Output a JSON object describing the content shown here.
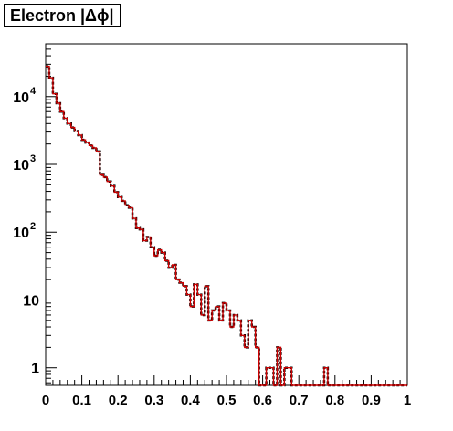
{
  "chart_data": {
    "type": "histogram",
    "title": "Electron |Δϕ|",
    "xlabel": "",
    "ylabel": "",
    "xlim": [
      0,
      1
    ],
    "ylim": [
      0.55,
      60000
    ],
    "yscale": "log",
    "bin_width": 0.01,
    "x_ticks": [
      "0",
      "0.1",
      "0.2",
      "0.3",
      "0.4",
      "0.5",
      "0.6",
      "0.7",
      "0.8",
      "0.9",
      "1"
    ],
    "x_tick_values": [
      0,
      0.1,
      0.2,
      0.3,
      0.4,
      0.5,
      0.6,
      0.7,
      0.8,
      0.9,
      1.0
    ],
    "y_ticks": [
      {
        "value": 1,
        "base": "1",
        "exp": ""
      },
      {
        "value": 10,
        "base": "10",
        "exp": ""
      },
      {
        "value": 100,
        "base": "10",
        "exp": "2"
      },
      {
        "value": 1000,
        "base": "10",
        "exp": "3"
      },
      {
        "value": 10000,
        "base": "10",
        "exp": "4"
      }
    ],
    "grid": false,
    "legend": "none",
    "series": [
      {
        "style": "dashed",
        "color": "#000000",
        "values": [
          28000,
          19000,
          11000,
          8000,
          6000,
          4800,
          4000,
          3500,
          3100,
          2700,
          2300,
          2100,
          1900,
          1750,
          1550,
          700,
          650,
          560,
          480,
          390,
          330,
          290,
          250,
          230,
          160,
          115,
          110,
          75,
          85,
          60,
          45,
          55,
          50,
          38,
          30,
          33,
          20,
          18,
          16,
          12,
          8,
          17,
          12,
          6,
          16,
          5,
          7,
          8,
          5,
          9,
          7,
          4,
          6,
          5,
          3,
          2,
          5,
          4,
          2,
          0,
          0,
          1,
          1,
          0,
          2,
          0,
          1,
          1,
          0,
          0,
          0,
          0,
          0,
          0,
          0,
          0,
          0,
          1,
          0,
          0,
          0,
          0,
          0,
          0,
          0,
          0,
          0,
          0,
          0,
          0,
          0,
          0,
          0,
          0,
          0,
          0,
          0,
          0,
          0,
          0
        ]
      },
      {
        "style": "solid",
        "color": "#cc0000",
        "values": [
          28000,
          19000,
          11000,
          8000,
          6000,
          4800,
          4000,
          3500,
          3100,
          2700,
          2300,
          2100,
          1900,
          1750,
          1550,
          700,
          650,
          560,
          480,
          390,
          330,
          290,
          250,
          230,
          160,
          115,
          110,
          75,
          85,
          60,
          45,
          55,
          50,
          38,
          30,
          33,
          20,
          18,
          16,
          12,
          8,
          17,
          12,
          6,
          16,
          5,
          7,
          8,
          5,
          9,
          7,
          4,
          6,
          5,
          3,
          2,
          5,
          4,
          2,
          0,
          0,
          1,
          1,
          0,
          2,
          0,
          1,
          1,
          0,
          0,
          0,
          0,
          0,
          0,
          0,
          0,
          0,
          1,
          0,
          0,
          0,
          0,
          0,
          0,
          0,
          0,
          0,
          0,
          0,
          0,
          0,
          0,
          0,
          0,
          0,
          0,
          0,
          0,
          0,
          0
        ]
      }
    ]
  }
}
